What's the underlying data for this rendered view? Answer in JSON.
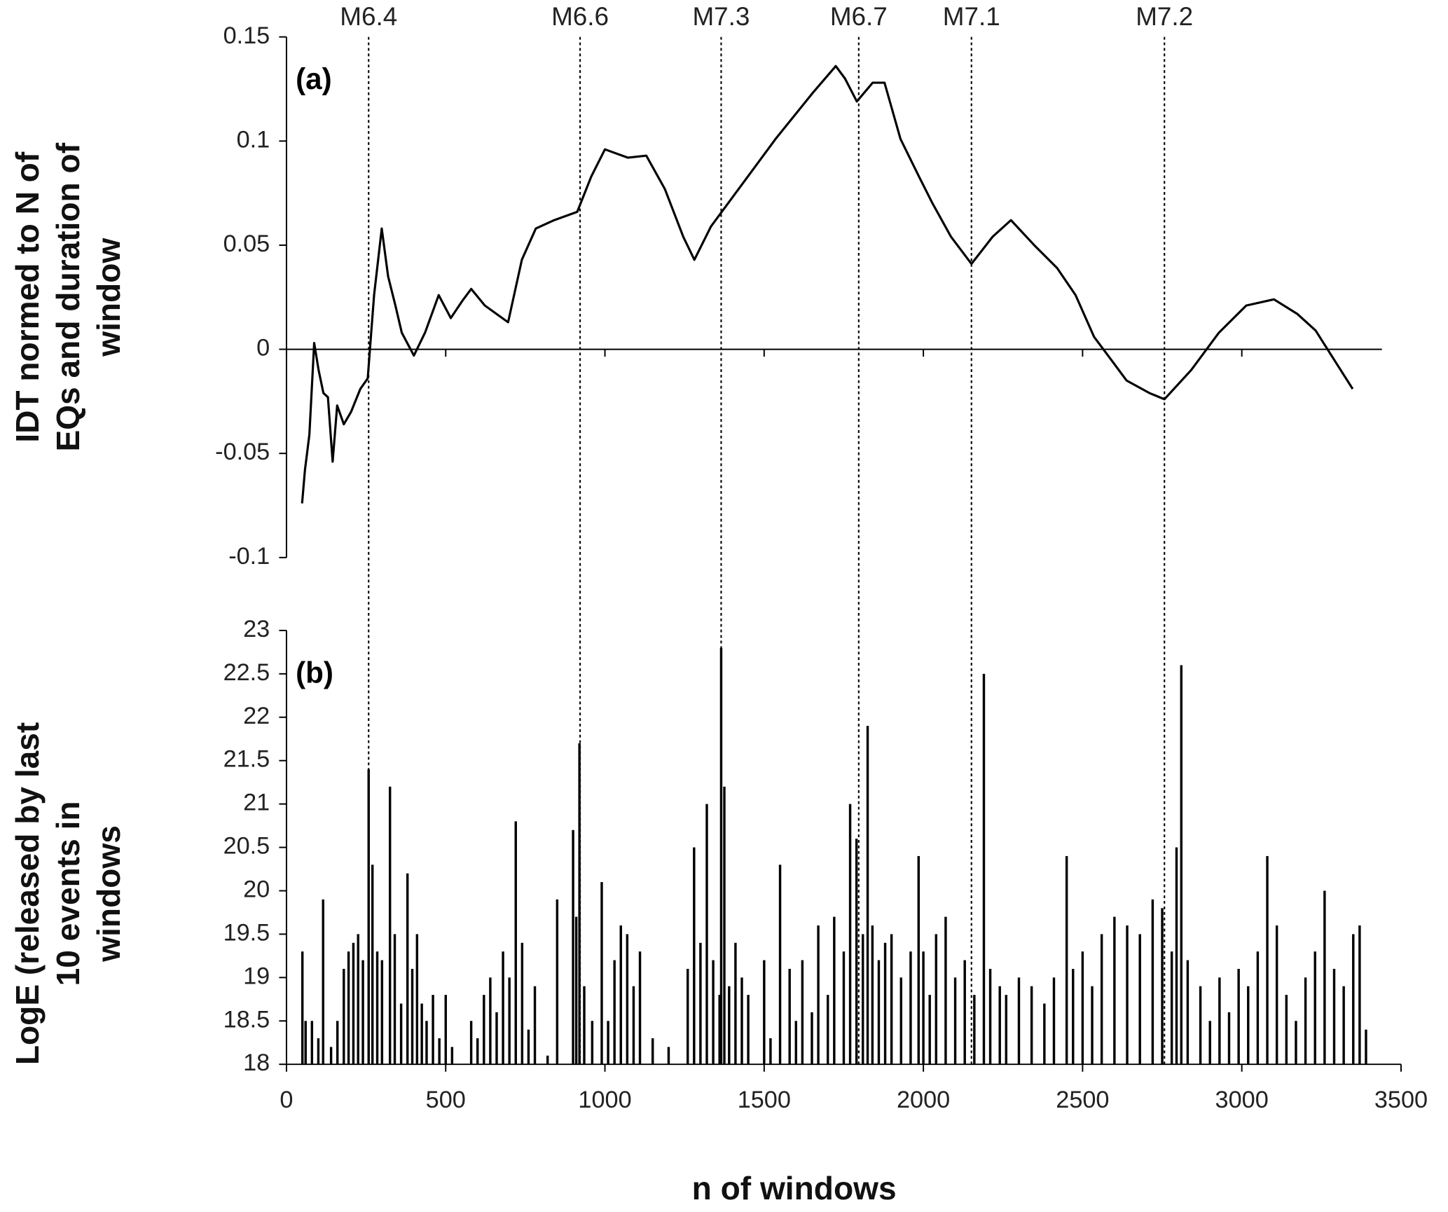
{
  "chart_data": [
    {
      "type": "line",
      "panel_label": "(a)",
      "ylabel": [
        "IDT normed to N of",
        "EQs and duration of",
        "window"
      ],
      "xlim": [
        0,
        3440
      ],
      "xticks": [
        0,
        500,
        1000,
        1500,
        2000,
        2500,
        3000
      ],
      "ylim": [
        -0.1,
        0.15
      ],
      "yticks": [
        -0.1,
        -0.05,
        0,
        0.05,
        0.1,
        0.15
      ],
      "color": "#000000",
      "annotations": [
        {
          "x": 258,
          "label": "M6.4"
        },
        {
          "x": 922,
          "label": "M6.6"
        },
        {
          "x": 1365,
          "label": "M7.3"
        },
        {
          "x": 1797,
          "label": "M6.7"
        },
        {
          "x": 2151,
          "label": "M7.1"
        },
        {
          "x": 2757,
          "label": "M7.2"
        }
      ],
      "x": [
        49,
        58,
        72,
        87,
        101,
        116,
        130,
        145,
        159,
        180,
        203,
        232,
        255,
        275,
        299,
        319,
        342,
        362,
        400,
        435,
        478,
        516,
        551,
        580,
        623,
        696,
        739,
        783,
        841,
        913,
        957,
        1000,
        1072,
        1130,
        1188,
        1246,
        1281,
        1333,
        1420,
        1536,
        1652,
        1725,
        1754,
        1791,
        1841,
        1878,
        1928,
        1986,
        2029,
        2087,
        2151,
        2217,
        2275,
        2348,
        2420,
        2478,
        2536,
        2580,
        2638,
        2710,
        2757,
        2841,
        2928,
        3014,
        3101,
        3174,
        3232,
        3290,
        3348
      ],
      "values": [
        -0.074,
        -0.058,
        -0.041,
        0.003,
        -0.01,
        -0.021,
        -0.023,
        -0.054,
        -0.027,
        -0.036,
        -0.03,
        -0.019,
        -0.014,
        0.026,
        0.058,
        0.035,
        0.021,
        0.008,
        -0.003,
        0.008,
        0.026,
        0.015,
        0.023,
        0.029,
        0.021,
        0.013,
        0.043,
        0.058,
        0.062,
        0.066,
        0.083,
        0.096,
        0.092,
        0.093,
        0.077,
        0.054,
        0.043,
        0.059,
        0.077,
        0.101,
        0.123,
        0.136,
        0.13,
        0.119,
        0.128,
        0.128,
        0.101,
        0.083,
        0.07,
        0.054,
        0.041,
        0.054,
        0.062,
        0.05,
        0.039,
        0.026,
        0.006,
        -0.003,
        -0.015,
        -0.021,
        -0.024,
        -0.01,
        0.008,
        0.021,
        0.024,
        0.017,
        0.009,
        -0.005,
        -0.019
      ]
    },
    {
      "type": "bar",
      "panel_label": "(b)",
      "ylabel": [
        "LogE (released by last",
        "10 events in",
        "windows"
      ],
      "xlabel": "n of windows",
      "xlim": [
        0,
        3500
      ],
      "xticks": [
        0,
        500,
        1000,
        1500,
        2000,
        2500,
        3000,
        3500
      ],
      "ylim": [
        18,
        23
      ],
      "yticks": [
        18,
        18.5,
        19,
        19.5,
        20,
        20.5,
        21,
        21.5,
        22,
        22.5,
        23
      ],
      "color": "#000000",
      "x": [
        50,
        60,
        80,
        100,
        115,
        140,
        160,
        180,
        195,
        210,
        225,
        240,
        258,
        270,
        285,
        300,
        325,
        340,
        360,
        380,
        395,
        410,
        425,
        440,
        460,
        480,
        500,
        520,
        580,
        600,
        620,
        640,
        660,
        680,
        700,
        720,
        740,
        760,
        780,
        820,
        850,
        900,
        910,
        920,
        935,
        960,
        990,
        1010,
        1030,
        1050,
        1070,
        1090,
        1110,
        1150,
        1200,
        1260,
        1280,
        1300,
        1320,
        1340,
        1360,
        1365,
        1375,
        1390,
        1410,
        1430,
        1450,
        1500,
        1520,
        1550,
        1580,
        1600,
        1620,
        1650,
        1670,
        1700,
        1720,
        1750,
        1770,
        1790,
        1810,
        1825,
        1840,
        1860,
        1880,
        1900,
        1930,
        1960,
        1985,
        2000,
        2020,
        2040,
        2070,
        2100,
        2130,
        2160,
        2190,
        2210,
        2240,
        2260,
        2300,
        2340,
        2380,
        2410,
        2450,
        2470,
        2500,
        2530,
        2560,
        2600,
        2640,
        2680,
        2720,
        2750,
        2780,
        2795,
        2810,
        2830,
        2870,
        2900,
        2930,
        2960,
        2990,
        3020,
        3050,
        3080,
        3110,
        3140,
        3170,
        3200,
        3230,
        3260,
        3290,
        3320,
        3350,
        3370,
        3390
      ],
      "values": [
        19.3,
        18.5,
        18.5,
        18.3,
        19.9,
        18.2,
        18.5,
        19.1,
        19.3,
        19.4,
        19.5,
        19.2,
        21.4,
        20.3,
        19.3,
        19.2,
        21.2,
        19.5,
        18.7,
        20.2,
        19.1,
        19.5,
        18.7,
        18.5,
        18.8,
        18.3,
        18.8,
        18.2,
        18.5,
        18.3,
        18.8,
        19.0,
        18.6,
        19.3,
        19.0,
        20.8,
        19.4,
        18.4,
        18.9,
        18.1,
        19.9,
        20.7,
        19.7,
        21.7,
        18.9,
        18.5,
        20.1,
        18.5,
        19.2,
        19.6,
        19.5,
        18.9,
        19.3,
        18.3,
        18.2,
        19.1,
        20.5,
        19.4,
        21.0,
        19.2,
        18.8,
        22.8,
        21.2,
        18.9,
        19.4,
        19.0,
        18.8,
        19.2,
        18.3,
        20.3,
        19.1,
        18.5,
        19.2,
        18.6,
        19.6,
        18.8,
        19.7,
        19.3,
        21.0,
        20.6,
        19.5,
        21.9,
        19.6,
        19.2,
        19.4,
        19.5,
        19.0,
        19.3,
        20.4,
        19.3,
        18.8,
        19.5,
        19.7,
        19.0,
        19.2,
        18.8,
        22.5,
        19.1,
        18.9,
        18.8,
        19.0,
        18.9,
        18.7,
        19.0,
        20.4,
        19.1,
        19.3,
        18.9,
        19.5,
        19.7,
        19.6,
        19.5,
        19.9,
        19.8,
        19.3,
        20.5,
        22.6,
        19.2,
        18.9,
        18.5,
        19.0,
        18.6,
        19.1,
        18.9,
        19.3,
        20.4,
        19.6,
        18.8,
        18.5,
        19.0,
        19.3,
        20.0,
        19.1,
        18.9,
        19.5,
        19.6,
        18.4
      ]
    }
  ]
}
